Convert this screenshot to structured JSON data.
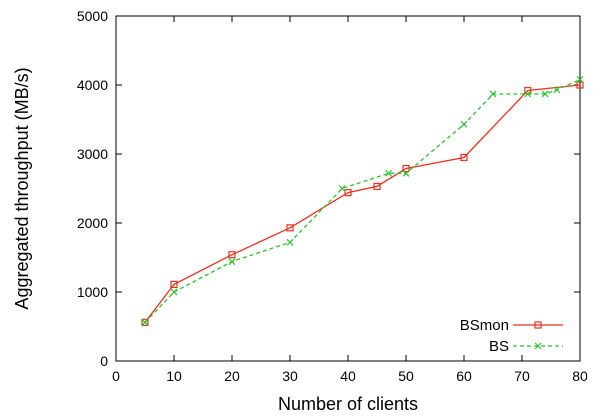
{
  "chart_data": {
    "type": "line",
    "xlabel": "Number of clients",
    "ylabel": "Aggregated throughput (MB/s)",
    "xlim": [
      0,
      80
    ],
    "ylim": [
      0,
      5000
    ],
    "xticks": [
      0,
      10,
      20,
      30,
      40,
      50,
      60,
      70,
      80
    ],
    "yticks": [
      0,
      1000,
      2000,
      3000,
      4000,
      5000
    ],
    "grid": false,
    "legend_position": "bottom-right",
    "series": [
      {
        "name": "BSmon",
        "color": "#e8311f",
        "line_style": "solid",
        "marker": "square",
        "x": [
          5,
          10,
          20,
          30,
          40,
          45,
          50,
          60,
          71,
          80
        ],
        "y": [
          560,
          1110,
          1540,
          1930,
          2440,
          2530,
          2790,
          2950,
          3920,
          4000
        ]
      },
      {
        "name": "BS",
        "color": "#2fbf2f",
        "line_style": "dashed",
        "marker": "x",
        "x": [
          5,
          10,
          20,
          30,
          39,
          47,
          50,
          60,
          65,
          71,
          74,
          76,
          80
        ],
        "y": [
          560,
          1000,
          1440,
          1720,
          2500,
          2720,
          2720,
          3430,
          3870,
          3870,
          3870,
          3930,
          4080
        ]
      }
    ]
  }
}
